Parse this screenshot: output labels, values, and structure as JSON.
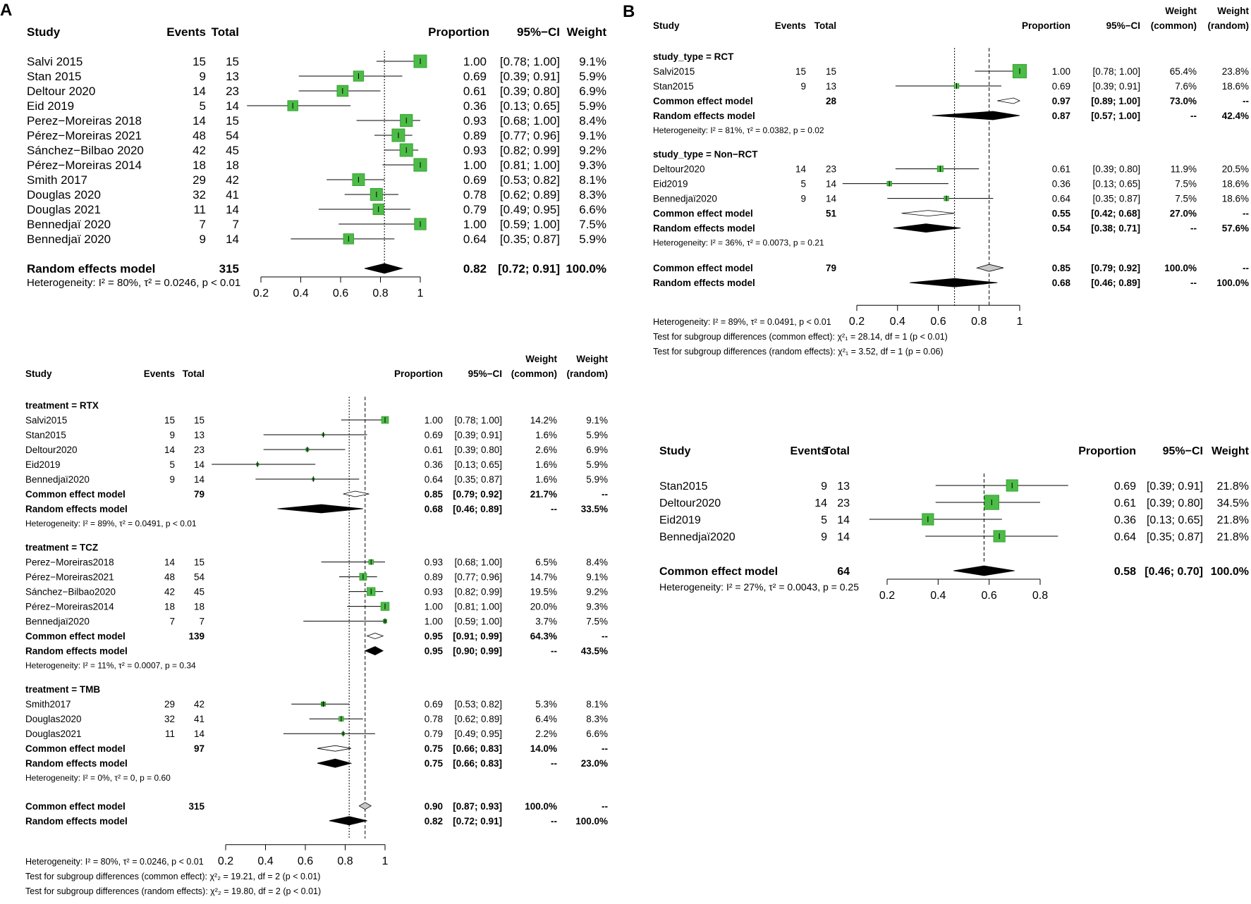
{
  "panels": {
    "A_label": "A",
    "B_label": "B"
  },
  "colors": {
    "square": "#4cbb47",
    "square_border": "#2f9a2b",
    "small_square": "#1e8c1e",
    "gray_text": "#9a9a9a",
    "common_diamond": "#c8c8c8"
  },
  "chart_data": [
    {
      "id": "top_left",
      "type": "forest",
      "columns": {
        "study": "Study",
        "events": "Events",
        "total": "Total",
        "proportion": "Proportion",
        "ci": "95%−CI",
        "weight": "Weight"
      },
      "studies": [
        {
          "label": "Salvi 2015",
          "events": "15",
          "total": "15",
          "est": 1.0,
          "lo": 0.78,
          "hi": 1.0,
          "prop": "1.00",
          "ci": "[0.78; 1.00]",
          "w": "9.1%",
          "wn": 9.1
        },
        {
          "label": "Stan 2015",
          "events": "9",
          "total": "13",
          "est": 0.69,
          "lo": 0.39,
          "hi": 0.91,
          "prop": "0.69",
          "ci": "[0.39; 0.91]",
          "w": "5.9%",
          "wn": 5.9
        },
        {
          "label": "Deltour 2020",
          "events": "14",
          "total": "23",
          "est": 0.61,
          "lo": 0.39,
          "hi": 0.8,
          "prop": "0.61",
          "ci": "[0.39; 0.80]",
          "w": "6.9%",
          "wn": 6.9
        },
        {
          "label": "Eid 2019",
          "events": "5",
          "total": "14",
          "est": 0.36,
          "lo": 0.13,
          "hi": 0.65,
          "prop": "0.36",
          "ci": "[0.13; 0.65]",
          "w": "5.9%",
          "wn": 5.9
        },
        {
          "label": "Perez−Moreiras 2018",
          "events": "14",
          "total": "15",
          "est": 0.93,
          "lo": 0.68,
          "hi": 1.0,
          "prop": "0.93",
          "ci": "[0.68; 1.00]",
          "w": "8.4%",
          "wn": 8.4
        },
        {
          "label": "Pérez−Moreiras 2021",
          "events": "48",
          "total": "54",
          "est": 0.89,
          "lo": 0.77,
          "hi": 0.96,
          "prop": "0.89",
          "ci": "[0.77; 0.96]",
          "w": "9.1%",
          "wn": 9.1
        },
        {
          "label": "Sánchez−Bilbao 2020",
          "events": "42",
          "total": "45",
          "est": 0.93,
          "lo": 0.82,
          "hi": 0.99,
          "prop": "0.93",
          "ci": "[0.82; 0.99]",
          "w": "9.2%",
          "wn": 9.2
        },
        {
          "label": "Pérez−Moreiras 2014",
          "events": "18",
          "total": "18",
          "est": 1.0,
          "lo": 0.81,
          "hi": 1.0,
          "prop": "1.00",
          "ci": "[0.81; 1.00]",
          "w": "9.3%",
          "wn": 9.3
        },
        {
          "label": "Smith 2017",
          "events": "29",
          "total": "42",
          "est": 0.69,
          "lo": 0.53,
          "hi": 0.82,
          "prop": "0.69",
          "ci": "[0.53; 0.82]",
          "w": "8.1%",
          "wn": 8.1
        },
        {
          "label": "Douglas 2020",
          "events": "32",
          "total": "41",
          "est": 0.78,
          "lo": 0.62,
          "hi": 0.89,
          "prop": "0.78",
          "ci": "[0.62; 0.89]",
          "w": "8.3%",
          "wn": 8.3
        },
        {
          "label": "Douglas 2021",
          "events": "11",
          "total": "14",
          "est": 0.79,
          "lo": 0.49,
          "hi": 0.95,
          "prop": "0.79",
          "ci": "[0.49; 0.95]",
          "w": "6.6%",
          "wn": 6.6
        },
        {
          "label": "Bennedjaï 2020",
          "events": "7",
          "total": "7",
          "est": 1.0,
          "lo": 0.59,
          "hi": 1.0,
          "prop": "1.00",
          "ci": "[0.59; 1.00]",
          "w": "7.5%",
          "wn": 7.5
        },
        {
          "label": "Bennedjaï 2020",
          "events": "9",
          "total": "14",
          "est": 0.64,
          "lo": 0.35,
          "hi": 0.87,
          "prop": "0.64",
          "ci": "[0.35; 0.87]",
          "w": "5.9%",
          "wn": 5.9
        }
      ],
      "summary": {
        "label": "Random effects model",
        "total": "315",
        "est": 0.82,
        "lo": 0.72,
        "hi": 0.91,
        "prop": "0.82",
        "ci": "[0.72; 0.91]",
        "w": "100.0%"
      },
      "heterogeneity": "Heterogeneity: I² = 80%, τ² = 0.0246, p < 0.01",
      "xlim": [
        0.2,
        1.0
      ],
      "ref_line": 0.82,
      "ticks": [
        "0.2",
        "0.4",
        "0.6",
        "0.8",
        "1"
      ]
    },
    {
      "id": "bottom_left",
      "type": "forest",
      "columns": {
        "study": "Study",
        "events": "Events",
        "total": "Total",
        "proportion": "Proportion",
        "ci": "95%−CI",
        "weight1": "Weight",
        "weight1b": "(common)",
        "weight2": "Weight",
        "weight2b": "(random)"
      },
      "groups": [
        {
          "label": "treatment = RTX",
          "studies": [
            {
              "label": "Salvi2015",
              "events": "15",
              "total": "15",
              "est": 1.0,
              "lo": 0.78,
              "hi": 1.0,
              "prop": "1.00",
              "ci": "[0.78; 1.00]",
              "wc": "14.2%",
              "wr": "9.1%",
              "wn": 14.2
            },
            {
              "label": "Stan2015",
              "events": "9",
              "total": "13",
              "est": 0.69,
              "lo": 0.39,
              "hi": 0.91,
              "prop": "0.69",
              "ci": "[0.39; 0.91]",
              "wc": "1.6%",
              "wr": "5.9%",
              "wn": 1.6
            },
            {
              "label": "Deltour2020",
              "events": "14",
              "total": "23",
              "est": 0.61,
              "lo": 0.39,
              "hi": 0.8,
              "prop": "0.61",
              "ci": "[0.39; 0.80]",
              "wc": "2.6%",
              "wr": "6.9%",
              "wn": 2.6
            },
            {
              "label": "Eid2019",
              "events": "5",
              "total": "14",
              "est": 0.36,
              "lo": 0.13,
              "hi": 0.65,
              "prop": "0.36",
              "ci": "[0.13; 0.65]",
              "wc": "1.6%",
              "wr": "5.9%",
              "wn": 1.6
            },
            {
              "label": "Bennedjaï2020",
              "events": "9",
              "total": "14",
              "est": 0.64,
              "lo": 0.35,
              "hi": 0.87,
              "prop": "0.64",
              "ci": "[0.35; 0.87]",
              "wc": "1.6%",
              "wr": "5.9%",
              "wn": 1.6
            }
          ],
          "common": {
            "label": "Common effect model",
            "total": "79",
            "est": 0.85,
            "lo": 0.79,
            "hi": 0.92,
            "prop": "0.85",
            "ci": "[0.79; 0.92]",
            "wc": "21.7%",
            "wr": "--"
          },
          "random": {
            "label": "Random effects model",
            "est": 0.68,
            "lo": 0.46,
            "hi": 0.89,
            "prop": "0.68",
            "ci": "[0.46; 0.89]",
            "wc": "--",
            "wr": "33.5%"
          },
          "het": "Heterogeneity: I² = 89%, τ² = 0.0491, p < 0.01"
        },
        {
          "label": "treatment = TCZ",
          "studies": [
            {
              "label": "Perez−Moreiras2018",
              "events": "14",
              "total": "15",
              "est": 0.93,
              "lo": 0.68,
              "hi": 1.0,
              "prop": "0.93",
              "ci": "[0.68; 1.00]",
              "wc": "6.5%",
              "wr": "8.4%",
              "wn": 6.5
            },
            {
              "label": "Pérez−Moreiras2021",
              "events": "48",
              "total": "54",
              "est": 0.89,
              "lo": 0.77,
              "hi": 0.96,
              "prop": "0.89",
              "ci": "[0.77; 0.96]",
              "wc": "14.7%",
              "wr": "9.1%",
              "wn": 14.7
            },
            {
              "label": "Sánchez−Bilbao2020",
              "events": "42",
              "total": "45",
              "est": 0.93,
              "lo": 0.82,
              "hi": 0.99,
              "prop": "0.93",
              "ci": "[0.82; 0.99]",
              "wc": "19.5%",
              "wr": "9.2%",
              "wn": 19.5
            },
            {
              "label": "Pérez−Moreiras2014",
              "events": "18",
              "total": "18",
              "est": 1.0,
              "lo": 0.81,
              "hi": 1.0,
              "prop": "1.00",
              "ci": "[0.81; 1.00]",
              "wc": "20.0%",
              "wr": "9.3%",
              "wn": 20.0
            },
            {
              "label": "Bennedjaï2020",
              "events": "7",
              "total": "7",
              "est": 1.0,
              "lo": 0.59,
              "hi": 1.0,
              "prop": "1.00",
              "ci": "[0.59; 1.00]",
              "wc": "3.7%",
              "wr": "7.5%",
              "wn": 3.7
            }
          ],
          "common": {
            "label": "Common effect model",
            "total": "139",
            "est": 0.95,
            "lo": 0.91,
            "hi": 0.99,
            "prop": "0.95",
            "ci": "[0.91; 0.99]",
            "wc": "64.3%",
            "wr": "--"
          },
          "random": {
            "label": "Random effects model",
            "est": 0.95,
            "lo": 0.9,
            "hi": 0.99,
            "prop": "0.95",
            "ci": "[0.90; 0.99]",
            "wc": "--",
            "wr": "43.5%"
          },
          "het": "Heterogeneity: I² = 11%, τ² = 0.0007, p = 0.34"
        },
        {
          "label": "treatment = TMB",
          "studies": [
            {
              "label": "Smith2017",
              "events": "29",
              "total": "42",
              "est": 0.69,
              "lo": 0.53,
              "hi": 0.82,
              "prop": "0.69",
              "ci": "[0.53; 0.82]",
              "wc": "5.3%",
              "wr": "8.1%",
              "wn": 5.3
            },
            {
              "label": "Douglas2020",
              "events": "32",
              "total": "41",
              "est": 0.78,
              "lo": 0.62,
              "hi": 0.89,
              "prop": "0.78",
              "ci": "[0.62; 0.89]",
              "wc": "6.4%",
              "wr": "8.3%",
              "wn": 6.4
            },
            {
              "label": "Douglas2021",
              "events": "11",
              "total": "14",
              "est": 0.79,
              "lo": 0.49,
              "hi": 0.95,
              "prop": "0.79",
              "ci": "[0.49; 0.95]",
              "wc": "2.2%",
              "wr": "6.6%",
              "wn": 2.2
            }
          ],
          "common": {
            "label": "Common effect model",
            "total": "97",
            "est": 0.75,
            "lo": 0.66,
            "hi": 0.83,
            "prop": "0.75",
            "ci": "[0.66; 0.83]",
            "wc": "14.0%",
            "wr": "--"
          },
          "random": {
            "label": "Random effects model",
            "est": 0.75,
            "lo": 0.66,
            "hi": 0.83,
            "prop": "0.75",
            "ci": "[0.66; 0.83]",
            "wc": "--",
            "wr": "23.0%"
          },
          "het": "Heterogeneity: I² = 0%, τ² = 0, p = 0.60"
        }
      ],
      "overall_common": {
        "label": "Common effect model",
        "total": "315",
        "est": 0.9,
        "lo": 0.87,
        "hi": 0.93,
        "prop": "0.90",
        "ci": "[0.87; 0.93]",
        "wc": "100.0%",
        "wr": "--"
      },
      "overall_random": {
        "label": "Random effects model",
        "est": 0.82,
        "lo": 0.72,
        "hi": 0.91,
        "prop": "0.82",
        "ci": "[0.72; 0.91]",
        "wc": "--",
        "wr": "100.0%"
      },
      "heterogeneity": "Heterogeneity: I² = 80%, τ² = 0.0246, p < 0.01",
      "subgroup_tests": [
        "Test for subgroup differences (common effect): χ²₂ = 19.21, df = 2 (p < 0.01)",
        "Test for subgroup differences (random effects): χ²₂ = 19.80, df = 2 (p < 0.01)"
      ],
      "xlim": [
        0.2,
        1.0
      ],
      "ref_dotted": 0.82,
      "ref_dashed": 0.9,
      "ticks": [
        "0.2",
        "0.4",
        "0.6",
        "0.8",
        "1"
      ]
    },
    {
      "id": "top_right",
      "type": "forest",
      "columns": {
        "study": "Study",
        "events": "Events",
        "total": "Total",
        "proportion": "Proportion",
        "ci": "95%−CI",
        "weight1": "Weight",
        "weight1b": "(common)",
        "weight2": "Weight",
        "weight2b": "(random)"
      },
      "groups": [
        {
          "label": "study_type = RCT",
          "studies": [
            {
              "label": "Salvi2015",
              "events": "15",
              "total": "15",
              "est": 1.0,
              "lo": 0.78,
              "hi": 1.0,
              "prop": "1.00",
              "ci": "[0.78; 1.00]",
              "wc": "65.4%",
              "wr": "23.8%",
              "wn": 65.4
            },
            {
              "label": "Stan2015",
              "events": "9",
              "total": "13",
              "est": 0.69,
              "lo": 0.39,
              "hi": 0.91,
              "prop": "0.69",
              "ci": "[0.39; 0.91]",
              "wc": "7.6%",
              "wr": "18.6%",
              "wn": 7.6
            }
          ],
          "common": {
            "label": "Common effect model",
            "total": "28",
            "est": 0.97,
            "lo": 0.89,
            "hi": 1.0,
            "prop": "0.97",
            "ci": "[0.89; 1.00]",
            "wc": "73.0%",
            "wr": "--"
          },
          "random": {
            "label": "Random effects model",
            "est": 0.87,
            "lo": 0.57,
            "hi": 1.0,
            "prop": "0.87",
            "ci": "[0.57; 1.00]",
            "wc": "--",
            "wr": "42.4%"
          },
          "het": "Heterogeneity: I² = 81%, τ² = 0.0382, p = 0.02"
        },
        {
          "label": "study_type = Non−RCT",
          "studies": [
            {
              "label": "Deltour2020",
              "events": "14",
              "total": "23",
              "est": 0.61,
              "lo": 0.39,
              "hi": 0.8,
              "prop": "0.61",
              "ci": "[0.39; 0.80]",
              "wc": "11.9%",
              "wr": "20.5%",
              "wn": 11.9
            },
            {
              "label": "Eid2019",
              "events": "5",
              "total": "14",
              "est": 0.36,
              "lo": 0.13,
              "hi": 0.65,
              "prop": "0.36",
              "ci": "[0.13; 0.65]",
              "wc": "7.5%",
              "wr": "18.6%",
              "wn": 7.5
            },
            {
              "label": "Bennedjaï2020",
              "events": "9",
              "total": "14",
              "est": 0.64,
              "lo": 0.35,
              "hi": 0.87,
              "prop": "0.64",
              "ci": "[0.35; 0.87]",
              "wc": "7.5%",
              "wr": "18.6%",
              "wn": 7.5
            }
          ],
          "common": {
            "label": "Common effect model",
            "total": "51",
            "est": 0.55,
            "lo": 0.42,
            "hi": 0.68,
            "prop": "0.55",
            "ci": "[0.42; 0.68]",
            "wc": "27.0%",
            "wr": "--"
          },
          "random": {
            "label": "Random effects model",
            "est": 0.54,
            "lo": 0.38,
            "hi": 0.71,
            "prop": "0.54",
            "ci": "[0.38; 0.71]",
            "wc": "--",
            "wr": "57.6%"
          },
          "het": "Heterogeneity: I² = 36%, τ² = 0.0073, p = 0.21"
        }
      ],
      "overall_common": {
        "label": "Common effect model",
        "total": "79",
        "est": 0.85,
        "lo": 0.79,
        "hi": 0.92,
        "prop": "0.85",
        "ci": "[0.79; 0.92]",
        "wc": "100.0%",
        "wr": "--"
      },
      "overall_random": {
        "label": "Random effects model",
        "est": 0.68,
        "lo": 0.46,
        "hi": 0.89,
        "prop": "0.68",
        "ci": "[0.46; 0.89]",
        "wc": "--",
        "wr": "100.0%"
      },
      "heterogeneity": "Heterogeneity: I² = 89%, τ² = 0.0491, p < 0.01",
      "subgroup_tests": [
        "Test for subgroup differences (common effect): χ²₁ = 28.14, df = 1 (p < 0.01)",
        "Test for subgroup differences (random effects): χ²₁ = 3.52, df = 1 (p = 0.06)"
      ],
      "xlim": [
        0.2,
        1.0
      ],
      "ref_dotted": 0.68,
      "ref_dashed": 0.85,
      "ticks": [
        "0.2",
        "0.4",
        "0.6",
        "0.8",
        "1"
      ]
    },
    {
      "id": "bottom_right",
      "type": "forest",
      "columns": {
        "study": "Study",
        "events": "Events",
        "total": "Total",
        "proportion": "Proportion",
        "ci": "95%−CI",
        "weight": "Weight"
      },
      "studies": [
        {
          "label": "Stan2015",
          "events": "9",
          "total": "13",
          "est": 0.69,
          "lo": 0.39,
          "hi": 0.91,
          "prop": "0.69",
          "ci": "[0.39; 0.91]",
          "w": "21.8%",
          "wn": 21.8
        },
        {
          "label": "Deltour2020",
          "events": "14",
          "total": "23",
          "est": 0.61,
          "lo": 0.39,
          "hi": 0.8,
          "prop": "0.61",
          "ci": "[0.39; 0.80]",
          "w": "34.5%",
          "wn": 34.5
        },
        {
          "label": "Eid2019",
          "events": "5",
          "total": "14",
          "est": 0.36,
          "lo": 0.13,
          "hi": 0.65,
          "prop": "0.36",
          "ci": "[0.13; 0.65]",
          "w": "21.8%",
          "wn": 21.8
        },
        {
          "label": "Bennedjaï2020",
          "events": "9",
          "total": "14",
          "est": 0.64,
          "lo": 0.35,
          "hi": 0.87,
          "prop": "0.64",
          "ci": "[0.35; 0.87]",
          "w": "21.8%",
          "wn": 21.8
        }
      ],
      "summary": {
        "label": "Common effect model",
        "total": "64",
        "est": 0.58,
        "lo": 0.46,
        "hi": 0.7,
        "prop": "0.58",
        "ci": "[0.46; 0.70]",
        "w": "100.0%"
      },
      "heterogeneity": "Heterogeneity: I² = 27%, τ² = 0.0043, p = 0.25",
      "xlim": [
        0.2,
        0.8
      ],
      "ref_line": 0.58,
      "ticks": [
        "0.2",
        "0.4",
        "0.6",
        "0.8"
      ]
    }
  ]
}
